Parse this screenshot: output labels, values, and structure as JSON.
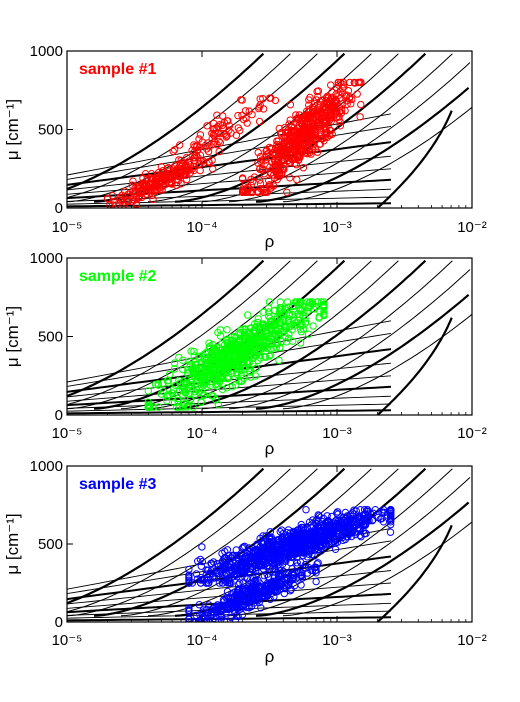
{
  "chart_data": [
    {
      "type": "scatter",
      "title": "sample #1",
      "color": "#ff0000",
      "xlabel": "ρ",
      "ylabel": "μ [cm⁻¹]",
      "xscale": "log",
      "xlim": [
        1e-05,
        0.01
      ],
      "ylim": [
        0,
        1000
      ],
      "xticks": [
        "10⁻⁵",
        "10⁻⁴",
        "10⁻³",
        "10⁻²"
      ],
      "yticks": [
        "0",
        "500",
        "1000"
      ],
      "clusters": [
        {
          "x_range": [
            2e-05,
            0.00012
          ],
          "y_range": [
            20,
            320
          ],
          "count": 200
        },
        {
          "x_range": [
            5e-05,
            0.00035
          ],
          "y_range": [
            250,
            700
          ],
          "count": 90
        },
        {
          "x_range": [
            0.0002,
            0.0015
          ],
          "y_range": [
            100,
            800
          ],
          "count": 550
        }
      ]
    },
    {
      "type": "scatter",
      "title": "sample #2",
      "color": "#00ff00",
      "xlabel": "ρ",
      "ylabel": "μ [cm⁻¹]",
      "xscale": "log",
      "xlim": [
        1e-05,
        0.01
      ],
      "ylim": [
        0,
        1000
      ],
      "xticks": [
        "10⁻⁵",
        "10⁻⁴",
        "10⁻³",
        "10⁻²"
      ],
      "yticks": [
        "0",
        "500",
        "1000"
      ],
      "clusters": [
        {
          "x_range": [
            4e-05,
            0.0008
          ],
          "y_range": [
            50,
            720
          ],
          "count": 700
        }
      ]
    },
    {
      "type": "scatter",
      "title": "sample #3",
      "color": "#0000ff",
      "xlabel": "ρ",
      "ylabel": "μ [cm⁻¹]",
      "xscale": "log",
      "xlim": [
        1e-05,
        0.01
      ],
      "ylim": [
        0,
        1000
      ],
      "xticks": [
        "10⁻⁵",
        "10⁻⁴",
        "10⁻³",
        "10⁻²"
      ],
      "yticks": [
        "0",
        "500",
        "1000"
      ],
      "clusters": [
        {
          "x_range": [
            8e-05,
            0.0007
          ],
          "y_range": [
            0,
            350
          ],
          "count": 350
        },
        {
          "x_range": [
            8e-05,
            0.0025
          ],
          "y_range": [
            250,
            720
          ],
          "count": 900
        }
      ]
    }
  ]
}
